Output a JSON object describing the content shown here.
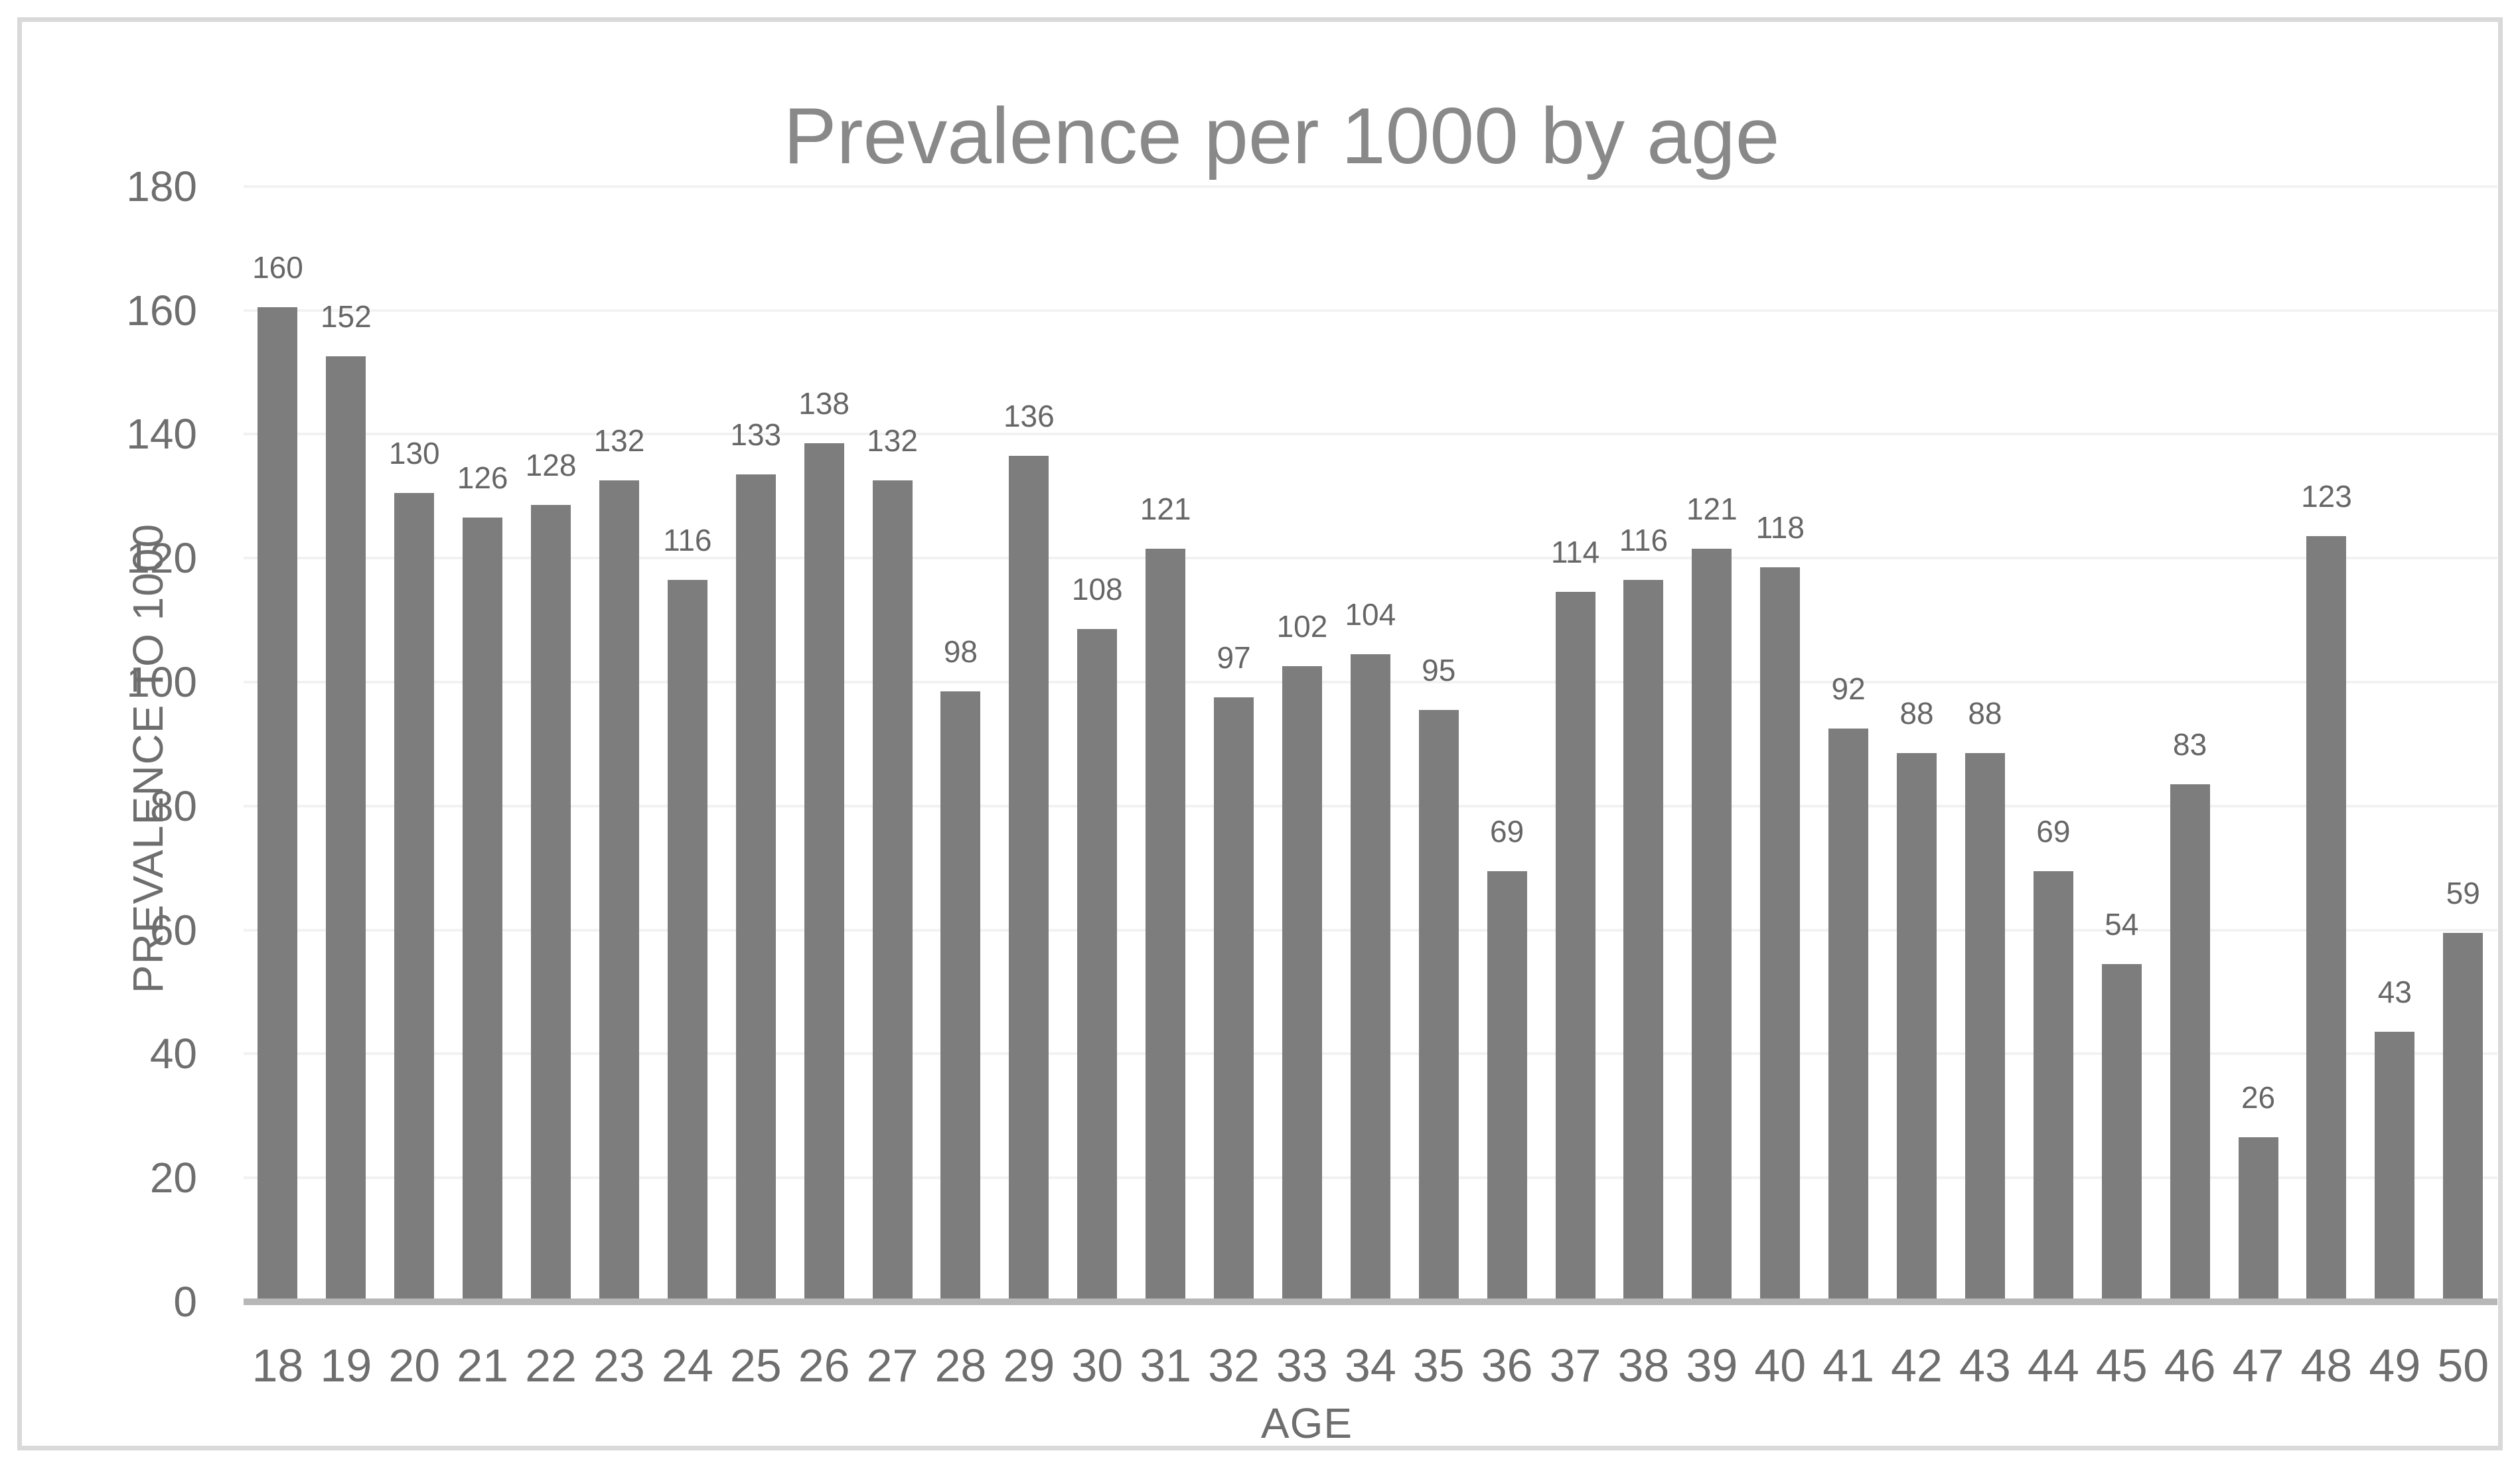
{
  "chart": {
    "title": "Prevalence per 1000 by age",
    "x_axis_title": "AGE",
    "y_axis_title": "PREVALENCE TO 1000"
  },
  "chart_data": {
    "type": "bar",
    "title": "Prevalence per 1000 by age",
    "xlabel": "AGE",
    "ylabel": "PREVALENCE TO 1000",
    "categories": [
      18,
      19,
      20,
      21,
      22,
      23,
      24,
      25,
      26,
      27,
      28,
      29,
      30,
      31,
      32,
      33,
      34,
      35,
      36,
      37,
      38,
      39,
      40,
      41,
      42,
      43,
      44,
      45,
      46,
      47,
      48,
      49,
      50
    ],
    "values": [
      160,
      152,
      130,
      126,
      128,
      132,
      116,
      133,
      138,
      132,
      98,
      136,
      108,
      121,
      97,
      102,
      104,
      95,
      69,
      114,
      116,
      121,
      118,
      92,
      88,
      88,
      69,
      54,
      83,
      26,
      123,
      43,
      59
    ],
    "ylim": [
      0,
      180
    ],
    "yticks": [
      0,
      20,
      40,
      60,
      80,
      100,
      120,
      140,
      160,
      180
    ],
    "grid": "horizontal",
    "legend": "none",
    "data_labels": "outside-end"
  },
  "colors": {
    "bar_fill": "#7d7d7d",
    "gridline": "#f2f2f2",
    "axis_line": "#b7b7b7",
    "tick_label": "#6e6e6e",
    "data_label": "#666666",
    "title": "#898989",
    "chart_border": "#d9d9d9",
    "background": "#ffffff"
  }
}
